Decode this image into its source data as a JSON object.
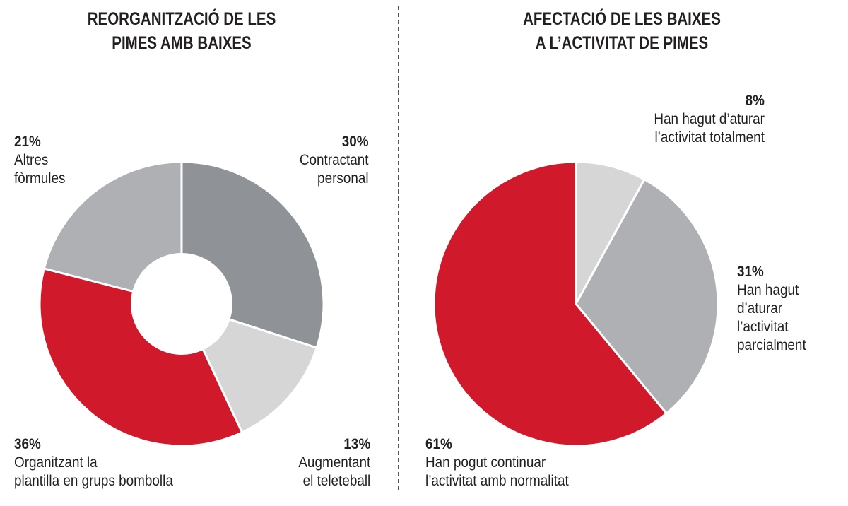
{
  "chart_data": [
    {
      "type": "pie",
      "donut": true,
      "title_lines": [
        "REORGANITZACIÓ DE LES",
        "PIMES AMB BAIXES"
      ],
      "slices": [
        {
          "value": 30,
          "pct_label": "30%",
          "label_lines": [
            "Contractant",
            "personal"
          ],
          "color": "#8f9297"
        },
        {
          "value": 13,
          "pct_label": "13%",
          "label_lines": [
            "Augmentant",
            "el teleteball"
          ],
          "color": "#d6d6d6"
        },
        {
          "value": 36,
          "pct_label": "36%",
          "label_lines": [
            "Organitzant la",
            "plantilla en grups bombolla"
          ],
          "color": "#d0192b"
        },
        {
          "value": 21,
          "pct_label": "21%",
          "label_lines": [
            "Altres",
            "fòrmules"
          ],
          "color": "#aeb0b3"
        }
      ]
    },
    {
      "type": "pie",
      "donut": false,
      "title_lines": [
        "AFECTACIÓ DE LES BAIXES",
        "A L’ACTIVITAT DE PIMES"
      ],
      "slices": [
        {
          "value": 8,
          "pct_label": "8%",
          "label_lines": [
            "Han hagut d’aturar",
            "l’activitat totalment"
          ],
          "color": "#d6d6d6"
        },
        {
          "value": 31,
          "pct_label": "31%",
          "label_lines": [
            "Han hagut",
            "d’aturar",
            "l’activitat",
            "parcialment"
          ],
          "color": "#aeb0b3"
        },
        {
          "value": 61,
          "pct_label": "61%",
          "label_lines": [
            "Han pogut continuar",
            "l’activitat amb normalitat"
          ],
          "color": "#d0192b"
        }
      ]
    }
  ]
}
